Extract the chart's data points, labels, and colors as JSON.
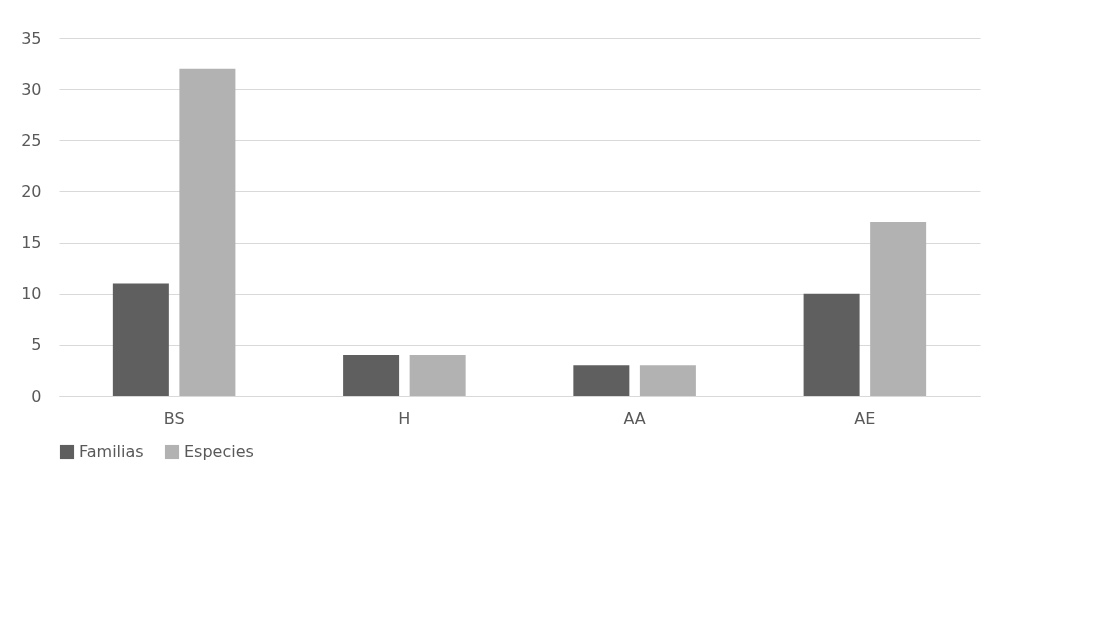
{
  "chart_data": {
    "type": "bar",
    "categories": [
      "BS",
      "H",
      "AA",
      "AE"
    ],
    "series": [
      {
        "name": "Familias",
        "color": "#5f5f5f",
        "values": [
          11,
          4,
          3,
          10
        ]
      },
      {
        "name": "Especies",
        "color": "#b2b2b2",
        "values": [
          32,
          4,
          3,
          17
        ]
      }
    ],
    "ylim": [
      0,
      35
    ],
    "yticks": [
      0,
      5,
      10,
      15,
      20,
      25,
      30,
      35
    ],
    "grid": "y",
    "legend": "bottom"
  }
}
